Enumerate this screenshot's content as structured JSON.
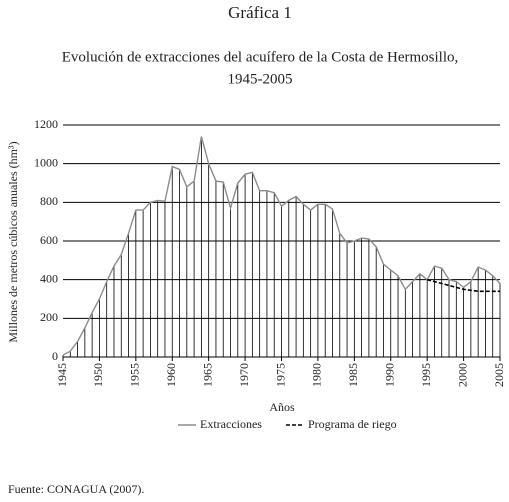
{
  "heading": "Gráfica 1",
  "chart_data": {
    "type": "line",
    "title": [
      "Evolución de extracciones del acuífero de la Costa de Hermosillo,",
      "1945-2005"
    ],
    "x_label": "Años",
    "y_label": "Millones de metros cúbicos anuales (hm³)",
    "x": [
      1945,
      1946,
      1947,
      1948,
      1949,
      1950,
      1951,
      1952,
      1953,
      1954,
      1955,
      1956,
      1957,
      1958,
      1959,
      1960,
      1961,
      1962,
      1963,
      1964,
      1965,
      1966,
      1967,
      1968,
      1969,
      1970,
      1971,
      1972,
      1973,
      1974,
      1975,
      1976,
      1977,
      1978,
      1979,
      1980,
      1981,
      1982,
      1983,
      1984,
      1985,
      1986,
      1987,
      1988,
      1989,
      1990,
      1991,
      1992,
      1993,
      1994,
      1995,
      1996,
      1997,
      1998,
      1999,
      2000,
      2001,
      2002,
      2003,
      2004,
      2005
    ],
    "series": [
      {
        "name": "Extracciones",
        "color": "#8c8c8c",
        "dashed": false,
        "drop_lines": true,
        "values": [
          10,
          30,
          80,
          150,
          230,
          300,
          390,
          470,
          530,
          640,
          760,
          760,
          800,
          810,
          805,
          985,
          970,
          880,
          910,
          1140,
          1000,
          910,
          905,
          770,
          900,
          945,
          955,
          860,
          860,
          850,
          780,
          810,
          830,
          790,
          760,
          790,
          790,
          765,
          640,
          590,
          600,
          615,
          610,
          570,
          480,
          450,
          420,
          350,
          390,
          430,
          400,
          470,
          460,
          400,
          390,
          360,
          390,
          465,
          450,
          420,
          380
        ]
      },
      {
        "name": "Programa de riego",
        "color": "#000000",
        "dashed": true,
        "drop_lines": false,
        "values": [
          null,
          null,
          null,
          null,
          null,
          null,
          null,
          null,
          null,
          null,
          null,
          null,
          null,
          null,
          null,
          null,
          null,
          null,
          null,
          null,
          null,
          null,
          null,
          null,
          null,
          null,
          null,
          null,
          null,
          null,
          null,
          null,
          null,
          null,
          null,
          null,
          null,
          null,
          null,
          null,
          null,
          null,
          null,
          null,
          null,
          null,
          null,
          null,
          null,
          null,
          400,
          390,
          380,
          370,
          360,
          350,
          345,
          340,
          340,
          340,
          340
        ]
      }
    ],
    "xlim": [
      1945,
      2005
    ],
    "xticks": [
      1945,
      1950,
      1955,
      1960,
      1965,
      1970,
      1975,
      1980,
      1985,
      1990,
      1995,
      2000,
      2005
    ],
    "ylim": [
      0,
      1200
    ],
    "yticks": [
      0,
      200,
      400,
      600,
      800,
      1000,
      1200
    ],
    "grid": true
  },
  "source": "Fuente: CONAGUA (2007)."
}
